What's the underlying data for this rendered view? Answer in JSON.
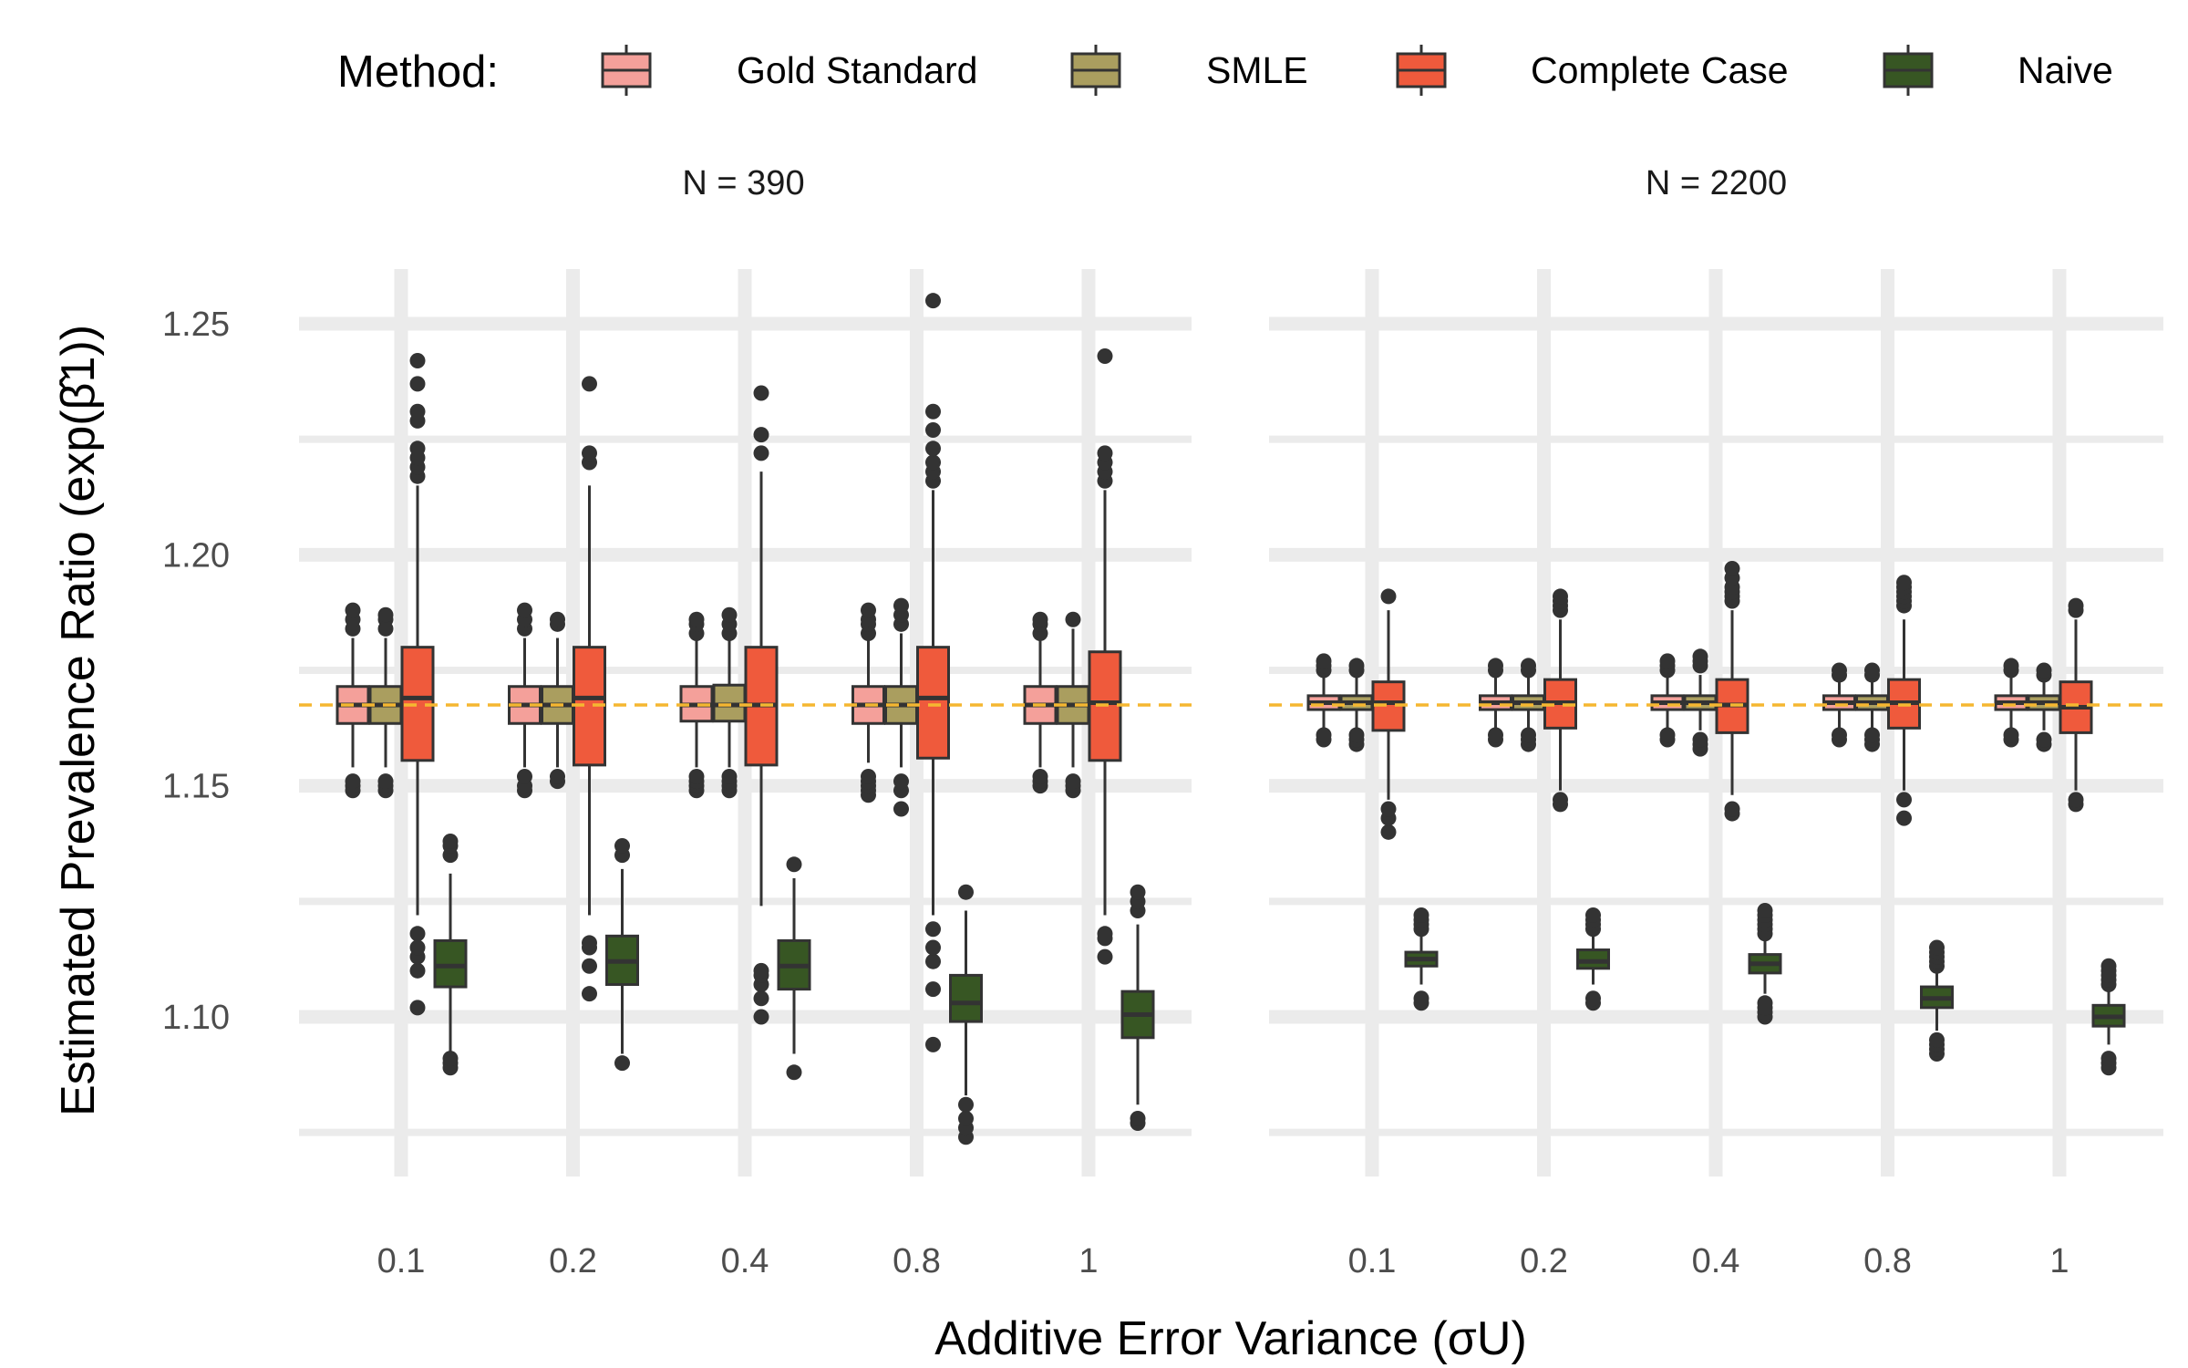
{
  "chart_data": {
    "type": "boxplot",
    "xlabel": "Additive Error Variance (σU)",
    "ylabel": "Estimated Prevalence Ratio (exp(β̂1))",
    "ylim": [
      1.075,
      1.26
    ],
    "yticks": [
      "1.10",
      "1.15",
      "1.20",
      "1.25"
    ],
    "reference_line": 1.1675,
    "reference_line_color": "#f5b731",
    "grid": true,
    "legend": {
      "title": "Method:",
      "position": "top",
      "entries": [
        {
          "name": "Gold Standard",
          "color": "#f4a09a"
        },
        {
          "name": "SMLE",
          "color": "#aa9e5f"
        },
        {
          "name": "Complete Case",
          "color": "#ef5a3c"
        },
        {
          "name": "Naive",
          "color": "#375623"
        }
      ]
    },
    "categories": [
      "0.1",
      "0.2",
      "0.4",
      "0.8",
      "1"
    ],
    "facets": [
      {
        "label": "N = 390",
        "series": [
          {
            "name": "Gold Standard",
            "boxes": [
              {
                "q1": 1.1635,
                "median": 1.1675,
                "q3": 1.1715,
                "wlo": 1.154,
                "whi": 1.182,
                "out": [
                  1.149,
                  1.15,
                  1.151,
                  1.184,
                  1.186,
                  1.188
                ]
              },
              {
                "q1": 1.1635,
                "median": 1.1675,
                "q3": 1.1715,
                "wlo": 1.154,
                "whi": 1.182,
                "out": [
                  1.149,
                  1.15,
                  1.152,
                  1.184,
                  1.186,
                  1.188
                ]
              },
              {
                "q1": 1.164,
                "median": 1.1675,
                "q3": 1.1715,
                "wlo": 1.154,
                "whi": 1.182,
                "out": [
                  1.149,
                  1.15,
                  1.151,
                  1.152,
                  1.183,
                  1.185,
                  1.186
                ]
              },
              {
                "q1": 1.1635,
                "median": 1.1675,
                "q3": 1.1715,
                "wlo": 1.155,
                "whi": 1.182,
                "out": [
                  1.148,
                  1.149,
                  1.15,
                  1.151,
                  1.152,
                  1.183,
                  1.185,
                  1.186,
                  1.188
                ]
              },
              {
                "q1": 1.1635,
                "median": 1.1675,
                "q3": 1.1715,
                "wlo": 1.154,
                "whi": 1.182,
                "out": [
                  1.15,
                  1.151,
                  1.152,
                  1.183,
                  1.185,
                  1.186
                ]
              }
            ]
          },
          {
            "name": "SMLE",
            "boxes": [
              {
                "q1": 1.1635,
                "median": 1.1675,
                "q3": 1.1715,
                "wlo": 1.154,
                "whi": 1.182,
                "out": [
                  1.149,
                  1.15,
                  1.151,
                  1.184,
                  1.186,
                  1.187
                ]
              },
              {
                "q1": 1.1635,
                "median": 1.1675,
                "q3": 1.1715,
                "wlo": 1.154,
                "whi": 1.182,
                "out": [
                  1.151,
                  1.152,
                  1.185,
                  1.186
                ]
              },
              {
                "q1": 1.164,
                "median": 1.1675,
                "q3": 1.1718,
                "wlo": 1.154,
                "whi": 1.182,
                "out": [
                  1.149,
                  1.15,
                  1.151,
                  1.152,
                  1.183,
                  1.185,
                  1.187
                ]
              },
              {
                "q1": 1.1635,
                "median": 1.1675,
                "q3": 1.1715,
                "wlo": 1.154,
                "whi": 1.183,
                "out": [
                  1.145,
                  1.149,
                  1.151,
                  1.185,
                  1.187,
                  1.189
                ]
              },
              {
                "q1": 1.1635,
                "median": 1.1675,
                "q3": 1.1715,
                "wlo": 1.154,
                "whi": 1.184,
                "out": [
                  1.149,
                  1.15,
                  1.151,
                  1.186
                ]
              }
            ]
          },
          {
            "name": "Complete Case",
            "boxes": [
              {
                "q1": 1.1555,
                "median": 1.169,
                "q3": 1.18,
                "wlo": 1.122,
                "whi": 1.215,
                "out": [
                  1.102,
                  1.11,
                  1.113,
                  1.115,
                  1.118,
                  1.217,
                  1.219,
                  1.221,
                  1.223,
                  1.229,
                  1.231,
                  1.237,
                  1.242
                ]
              },
              {
                "q1": 1.1545,
                "median": 1.169,
                "q3": 1.18,
                "wlo": 1.122,
                "whi": 1.215,
                "out": [
                  1.105,
                  1.111,
                  1.115,
                  1.116,
                  1.22,
                  1.222,
                  1.237
                ]
              },
              {
                "q1": 1.1545,
                "median": 1.1675,
                "q3": 1.18,
                "wlo": 1.124,
                "whi": 1.218,
                "out": [
                  1.1,
                  1.104,
                  1.107,
                  1.109,
                  1.11,
                  1.222,
                  1.226,
                  1.235
                ]
              },
              {
                "q1": 1.156,
                "median": 1.169,
                "q3": 1.18,
                "wlo": 1.122,
                "whi": 1.214,
                "out": [
                  1.094,
                  1.106,
                  1.112,
                  1.115,
                  1.119,
                  1.216,
                  1.218,
                  1.22,
                  1.223,
                  1.227,
                  1.231,
                  1.255
                ]
              },
              {
                "q1": 1.1555,
                "median": 1.168,
                "q3": 1.179,
                "wlo": 1.122,
                "whi": 1.214,
                "out": [
                  1.113,
                  1.117,
                  1.118,
                  1.216,
                  1.218,
                  1.22,
                  1.222,
                  1.243
                ]
              }
            ]
          },
          {
            "name": "Naive",
            "boxes": [
              {
                "q1": 1.1065,
                "median": 1.111,
                "q3": 1.1165,
                "wlo": 1.092,
                "whi": 1.131,
                "out": [
                  1.089,
                  1.09,
                  1.091,
                  1.135,
                  1.137,
                  1.138
                ]
              },
              {
                "q1": 1.107,
                "median": 1.112,
                "q3": 1.1175,
                "wlo": 1.092,
                "whi": 1.132,
                "out": [
                  1.09,
                  1.135,
                  1.137
                ]
              },
              {
                "q1": 1.106,
                "median": 1.111,
                "q3": 1.1165,
                "wlo": 1.092,
                "whi": 1.13,
                "out": [
                  1.088,
                  1.133
                ]
              },
              {
                "q1": 1.099,
                "median": 1.103,
                "q3": 1.109,
                "wlo": 1.083,
                "whi": 1.123,
                "out": [
                  1.074,
                  1.076,
                  1.078,
                  1.081,
                  1.127
                ]
              },
              {
                "q1": 1.0955,
                "median": 1.1005,
                "q3": 1.1055,
                "wlo": 1.081,
                "whi": 1.12,
                "out": [
                  1.077,
                  1.078,
                  1.123,
                  1.125,
                  1.127
                ]
              }
            ]
          }
        ]
      },
      {
        "label": "N = 2200",
        "series": [
          {
            "name": "Gold Standard",
            "boxes": [
              {
                "q1": 1.1665,
                "median": 1.168,
                "q3": 1.1695,
                "wlo": 1.162,
                "whi": 1.174,
                "out": [
                  1.16,
                  1.161,
                  1.175,
                  1.176,
                  1.177
                ]
              },
              {
                "q1": 1.1665,
                "median": 1.168,
                "q3": 1.1695,
                "wlo": 1.162,
                "whi": 1.174,
                "out": [
                  1.16,
                  1.161,
                  1.175,
                  1.176
                ]
              },
              {
                "q1": 1.1665,
                "median": 1.168,
                "q3": 1.1695,
                "wlo": 1.162,
                "whi": 1.174,
                "out": [
                  1.16,
                  1.161,
                  1.175,
                  1.176,
                  1.177
                ]
              },
              {
                "q1": 1.1665,
                "median": 1.168,
                "q3": 1.1695,
                "wlo": 1.162,
                "whi": 1.173,
                "out": [
                  1.16,
                  1.161,
                  1.174,
                  1.175
                ]
              },
              {
                "q1": 1.1665,
                "median": 1.168,
                "q3": 1.1695,
                "wlo": 1.162,
                "whi": 1.174,
                "out": [
                  1.16,
                  1.161,
                  1.175,
                  1.176
                ]
              }
            ]
          },
          {
            "name": "SMLE",
            "boxes": [
              {
                "q1": 1.1665,
                "median": 1.168,
                "q3": 1.1695,
                "wlo": 1.162,
                "whi": 1.174,
                "out": [
                  1.159,
                  1.16,
                  1.161,
                  1.175,
                  1.176
                ]
              },
              {
                "q1": 1.1665,
                "median": 1.168,
                "q3": 1.1695,
                "wlo": 1.162,
                "whi": 1.174,
                "out": [
                  1.159,
                  1.16,
                  1.161,
                  1.175,
                  1.176
                ]
              },
              {
                "q1": 1.1665,
                "median": 1.168,
                "q3": 1.1695,
                "wlo": 1.162,
                "whi": 1.174,
                "out": [
                  1.158,
                  1.159,
                  1.16,
                  1.176,
                  1.177,
                  1.178
                ]
              },
              {
                "q1": 1.1665,
                "median": 1.168,
                "q3": 1.1695,
                "wlo": 1.162,
                "whi": 1.173,
                "out": [
                  1.159,
                  1.16,
                  1.161,
                  1.174,
                  1.175
                ]
              },
              {
                "q1": 1.1665,
                "median": 1.168,
                "q3": 1.1695,
                "wlo": 1.162,
                "whi": 1.173,
                "out": [
                  1.159,
                  1.16,
                  1.174,
                  1.175
                ]
              }
            ]
          },
          {
            "name": "Complete Case",
            "boxes": [
              {
                "q1": 1.162,
                "median": 1.168,
                "q3": 1.1725,
                "wlo": 1.147,
                "whi": 1.188,
                "out": [
                  1.14,
                  1.143,
                  1.145,
                  1.191
                ]
              },
              {
                "q1": 1.1625,
                "median": 1.168,
                "q3": 1.173,
                "wlo": 1.149,
                "whi": 1.186,
                "out": [
                  1.146,
                  1.147,
                  1.188,
                  1.189,
                  1.19,
                  1.191
                ]
              },
              {
                "q1": 1.1615,
                "median": 1.1675,
                "q3": 1.173,
                "wlo": 1.148,
                "whi": 1.188,
                "out": [
                  1.144,
                  1.145,
                  1.19,
                  1.191,
                  1.192,
                  1.193,
                  1.195,
                  1.197
                ]
              },
              {
                "q1": 1.1625,
                "median": 1.168,
                "q3": 1.173,
                "wlo": 1.149,
                "whi": 1.186,
                "out": [
                  1.143,
                  1.147,
                  1.189,
                  1.19,
                  1.191,
                  1.192,
                  1.193,
                  1.194
                ]
              },
              {
                "q1": 1.1615,
                "median": 1.167,
                "q3": 1.1725,
                "wlo": 1.149,
                "whi": 1.186,
                "out": [
                  1.146,
                  1.147,
                  1.188,
                  1.189
                ]
              }
            ]
          },
          {
            "name": "Naive",
            "boxes": [
              {
                "q1": 1.111,
                "median": 1.1125,
                "q3": 1.114,
                "wlo": 1.107,
                "whi": 1.118,
                "out": [
                  1.103,
                  1.104,
                  1.119,
                  1.12,
                  1.121,
                  1.122
                ]
              },
              {
                "q1": 1.1105,
                "median": 1.112,
                "q3": 1.1145,
                "wlo": 1.107,
                "whi": 1.118,
                "out": [
                  1.103,
                  1.104,
                  1.119,
                  1.12,
                  1.121,
                  1.122
                ]
              },
              {
                "q1": 1.1095,
                "median": 1.1115,
                "q3": 1.1135,
                "wlo": 1.105,
                "whi": 1.117,
                "out": [
                  1.1,
                  1.101,
                  1.102,
                  1.103,
                  1.118,
                  1.119,
                  1.12,
                  1.121,
                  1.122,
                  1.123
                ]
              },
              {
                "q1": 1.102,
                "median": 1.104,
                "q3": 1.1065,
                "wlo": 1.097,
                "whi": 1.11,
                "out": [
                  1.092,
                  1.093,
                  1.094,
                  1.095,
                  1.111,
                  1.112,
                  1.113,
                  1.114,
                  1.115
                ]
              },
              {
                "q1": 1.098,
                "median": 1.1,
                "q3": 1.1025,
                "wlo": 1.094,
                "whi": 1.106,
                "out": [
                  1.089,
                  1.09,
                  1.091,
                  1.107,
                  1.108,
                  1.109,
                  1.11,
                  1.111
                ]
              }
            ]
          }
        ]
      }
    ]
  }
}
